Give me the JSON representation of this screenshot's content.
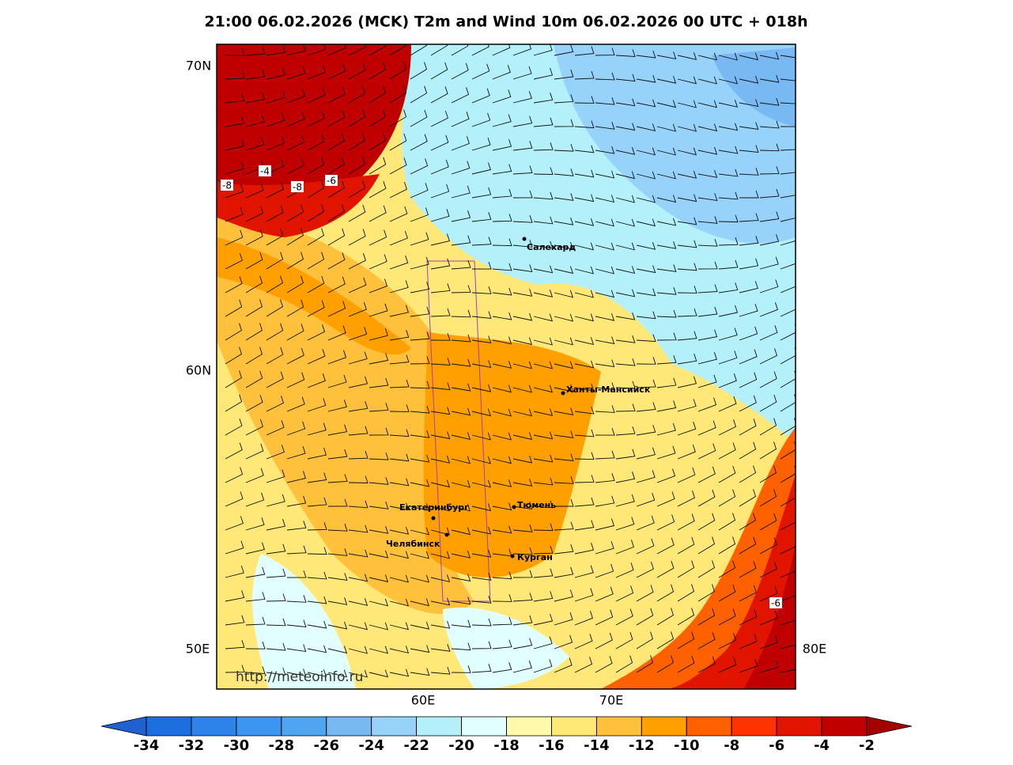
{
  "title": "21:00 06.02.2026 (MCK) T2m and Wind 10m 06.02.2026 00 UTC + 018h",
  "map": {
    "lat_labels": [
      "70N",
      "60N"
    ],
    "lon_labels": [
      "50E",
      "80E",
      "60E",
      "70E"
    ],
    "cities": [
      "Салехард",
      "Ханты-Мансийск",
      "Екатеринбург",
      "Тюмень",
      "Челябинск",
      "Курган"
    ],
    "contour_labels": [
      -4,
      -8,
      -8,
      -6,
      -6
    ],
    "watermark": "http://meteoinfo.ru"
  },
  "colorbar": {
    "ticks": [
      -34,
      -32,
      -30,
      -28,
      -26,
      -24,
      -22,
      -20,
      -18,
      -16,
      -14,
      -12,
      -10,
      -8,
      -6,
      -4,
      -2
    ],
    "colors": [
      "#2060d0",
      "#1f6ee0",
      "#2e82ea",
      "#3c96f0",
      "#50a5f0",
      "#78b9f4",
      "#96d2fa",
      "#b4f0fa",
      "#e1ffff",
      "#fffaaa",
      "#ffe878",
      "#ffc03c",
      "#ffa000",
      "#ff6000",
      "#ff3200",
      "#e11400",
      "#c00000",
      "#a50000"
    ]
  }
}
